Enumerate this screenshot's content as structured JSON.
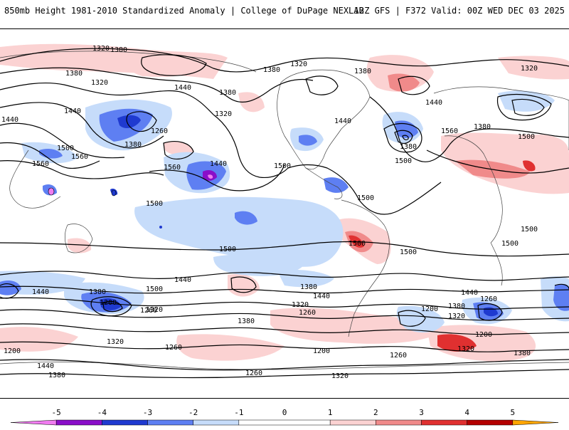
{
  "header": {
    "title": "850mb Height 1981-2010 Standardized Anomaly | College of DuPage NEXLAB",
    "run_info": "12Z GFS | F372 Valid: 00Z WED DEC 03 2025"
  },
  "legend": {
    "ticks": [
      {
        "value": -5,
        "label": "-5"
      },
      {
        "value": -4,
        "label": "-4"
      },
      {
        "value": -3,
        "label": "-3"
      },
      {
        "value": -2,
        "label": "-2"
      },
      {
        "value": -1,
        "label": "-1"
      },
      {
        "value": 0,
        "label": "0"
      },
      {
        "value": 1,
        "label": "1"
      },
      {
        "value": 2,
        "label": "2"
      },
      {
        "value": 3,
        "label": "3"
      },
      {
        "value": 4,
        "label": "4"
      },
      {
        "value": 5,
        "label": "5"
      }
    ],
    "colors": {
      "neg5": "#f07cf0",
      "neg4": "#8a0ec9",
      "neg3": "#1f3ad0",
      "neg2": "#5e7ff2",
      "neg1": "#c6dcfa",
      "zero": "#ffffff",
      "pos1": "#fbd2d2",
      "pos2": "#f08a8a",
      "pos3": "#e03030",
      "pos4": "#b40000",
      "pos5": "#ffa500"
    }
  },
  "map": {
    "contour_labels": [
      "1380",
      "1380",
      "1320",
      "1440",
      "1380",
      "1320",
      "1440",
      "1500",
      "1560",
      "1260",
      "1380",
      "1440",
      "1560",
      "1320",
      "1380",
      "1320",
      "1500",
      "1440",
      "1320",
      "1500",
      "1380",
      "1440",
      "1380",
      "1560",
      "1440",
      "1500",
      "1380",
      "1500",
      "1560",
      "1500",
      "1500",
      "1500",
      "1500",
      "1500",
      "1500",
      "1440",
      "1380",
      "1260",
      "1200",
      "1320",
      "1440",
      "1500",
      "1440",
      "1380",
      "1320",
      "1260",
      "1200",
      "1440",
      "1380",
      "1320",
      "1260",
      "1200",
      "1200",
      "1380",
      "1320",
      "1260",
      "1320",
      "1200",
      "1260",
      "1380",
      "1260",
      "1320",
      "1440",
      "1380"
    ]
  }
}
